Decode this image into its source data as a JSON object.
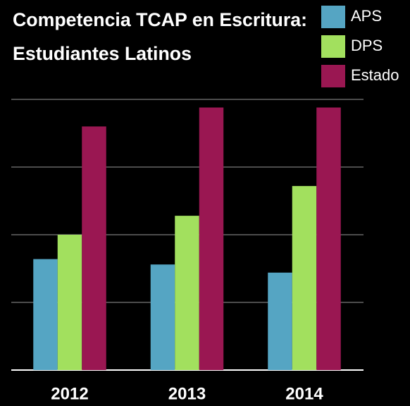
{
  "chart_data": {
    "type": "bar",
    "title": [
      "Competencia TCAP en Escritura:",
      "Estudiantes Latinos"
    ],
    "categories": [
      "2012",
      "2013",
      "2014"
    ],
    "series": [
      {
        "name": "APS",
        "color": "#55a5c3",
        "values": [
          41,
          39,
          36
        ]
      },
      {
        "name": "DPS",
        "color": "#a2e05e",
        "values": [
          50,
          57,
          68
        ]
      },
      {
        "name": "Estado",
        "color": "#9a1752",
        "values": [
          90,
          97,
          97
        ]
      }
    ],
    "ylim": [
      0,
      100
    ],
    "yticks": [
      0,
      25,
      50,
      75,
      100
    ],
    "grid": true,
    "legend": "top-right"
  }
}
